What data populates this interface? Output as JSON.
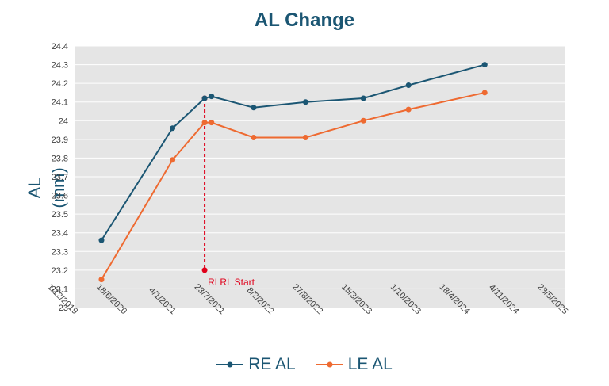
{
  "chart_data": {
    "type": "line",
    "title": "AL Change",
    "xlabel": "",
    "ylabel": "AL (mm)",
    "ylim": [
      23,
      24.4
    ],
    "y_ticks": [
      "23",
      "23.1",
      "23.2",
      "23.3",
      "23.4",
      "23.5",
      "23.6",
      "23.7",
      "23.8",
      "23.9",
      "24",
      "24.1",
      "24.2",
      "24.3",
      "24.4"
    ],
    "xlim": [
      "2019-12-01",
      "2025-05-23"
    ],
    "x_ticks": [
      "2019-12-01",
      "2020-06-18",
      "2021-01-04",
      "2021-07-23",
      "2022-02-08",
      "2022-08-27",
      "2023-03-15",
      "2023-10-01",
      "2024-04-18",
      "2024-11-04",
      "2025-05-23"
    ],
    "x_tick_labels": [
      "1/12/2019",
      "18/6/2020",
      "4/1/2021",
      "23/7/2021",
      "8/2/2022",
      "27/8/2022",
      "15/3/2023",
      "1/10/2023",
      "18/4/2024",
      "4/11/2024",
      "23/5/2025"
    ],
    "grid": true,
    "legend": "bottom",
    "series": [
      {
        "name": "RE AL",
        "color": "#1b5673",
        "x": [
          "2020-03-20",
          "2021-01-04",
          "2021-05-15",
          "2021-06-12",
          "2021-12-01",
          "2022-07-01",
          "2023-02-22",
          "2023-08-25",
          "2024-07-01"
        ],
        "y": [
          23.36,
          23.96,
          24.12,
          24.13,
          24.07,
          24.1,
          24.12,
          24.19,
          24.3
        ]
      },
      {
        "name": "LE AL",
        "color": "#ee6a31",
        "x": [
          "2020-03-20",
          "2021-01-04",
          "2021-05-15",
          "2021-06-12",
          "2021-12-01",
          "2022-07-01",
          "2023-02-22",
          "2023-08-25",
          "2024-07-01"
        ],
        "y": [
          23.15,
          23.79,
          23.99,
          23.99,
          23.91,
          23.91,
          24.0,
          24.06,
          24.15
        ]
      }
    ],
    "annotations": [
      {
        "text": "RLRL Start",
        "color": "#e0001a",
        "x": "2021-05-15",
        "y_from": 23.2,
        "y_to": 24.12
      }
    ]
  }
}
